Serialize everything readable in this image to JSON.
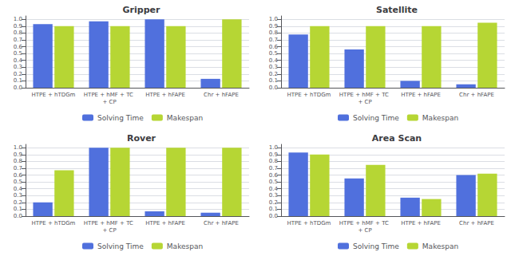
{
  "chart_data": [
    {
      "type": "bar",
      "title": "Gripper",
      "categories": [
        "HTPE + hTDGm",
        "HTPE + hMF + TC + CP",
        "HTPE + hFAPE",
        "Chr + hFAPE"
      ],
      "series": [
        {
          "name": "Solving Time",
          "values": [
            0.93,
            0.97,
            1.0,
            0.13
          ]
        },
        {
          "name": "Makespan",
          "values": [
            0.9,
            0.9,
            0.9,
            1.0
          ]
        }
      ],
      "ylim": [
        0,
        1.05
      ],
      "yticks": [
        {
          "value": 0,
          "label": "0.0"
        },
        0.1,
        0.2,
        0.3,
        0.4,
        0.5,
        0.6,
        0.7,
        0.8,
        0.9,
        {
          "value": 1,
          "label": "1.0"
        }
      ],
      "grid": true,
      "legend": "bottom"
    },
    {
      "type": "bar",
      "title": "Satellite",
      "categories": [
        "HTPE + hTDGm",
        "HTPE + hMF + TC + CP",
        "HTPE + hFAPE",
        "Chr + hFAPE"
      ],
      "series": [
        {
          "name": "Solving Time",
          "values": [
            0.78,
            0.56,
            0.1,
            0.05
          ]
        },
        {
          "name": "Makespan",
          "values": [
            0.9,
            0.9,
            0.9,
            0.95
          ]
        }
      ],
      "ylim": [
        0,
        1.05
      ],
      "yticks": [
        {
          "value": 0,
          "label": "0.0"
        },
        0.1,
        0.2,
        0.3,
        0.4,
        0.5,
        0.6,
        0.7,
        0.8,
        0.9,
        {
          "value": 1,
          "label": "1.0"
        }
      ],
      "grid": true,
      "legend": "bottom"
    },
    {
      "type": "bar",
      "title": "Rover",
      "categories": [
        "HTPE + hTDGm",
        "HTPE + hMF + TC + CP",
        "HTPE + hFAPE",
        "Chr + hFAPE"
      ],
      "series": [
        {
          "name": "Solving Time",
          "values": [
            0.2,
            1.0,
            0.07,
            0.05
          ]
        },
        {
          "name": "Makespan",
          "values": [
            0.67,
            1.0,
            1.0,
            1.0
          ]
        }
      ],
      "ylim": [
        0,
        1.05
      ],
      "yticks": [
        {
          "value": 0,
          "label": "0.0"
        },
        0.1,
        0.2,
        0.3,
        0.4,
        0.5,
        0.6,
        0.7,
        0.8,
        0.9,
        {
          "value": 1,
          "label": "1.0"
        }
      ],
      "grid": true,
      "legend": "bottom"
    },
    {
      "type": "bar",
      "title": "Area Scan",
      "categories": [
        "HTPE + hTDGm",
        "HTPE + hMF + TC + CP",
        "HTPE + hFAPE",
        "Chr + hFAPE"
      ],
      "series": [
        {
          "name": "Solving Time",
          "values": [
            0.93,
            0.55,
            0.27,
            0.6
          ]
        },
        {
          "name": "Makespan",
          "values": [
            0.9,
            0.75,
            0.25,
            0.62
          ]
        }
      ],
      "ylim": [
        0,
        1.05
      ],
      "yticks": [
        {
          "value": 0,
          "label": "0.0"
        },
        0.1,
        0.2,
        0.3,
        0.4,
        0.5,
        0.6,
        0.7,
        0.8,
        0.9,
        {
          "value": 1,
          "label": "1.0"
        }
      ],
      "grid": true,
      "legend": "bottom"
    }
  ]
}
